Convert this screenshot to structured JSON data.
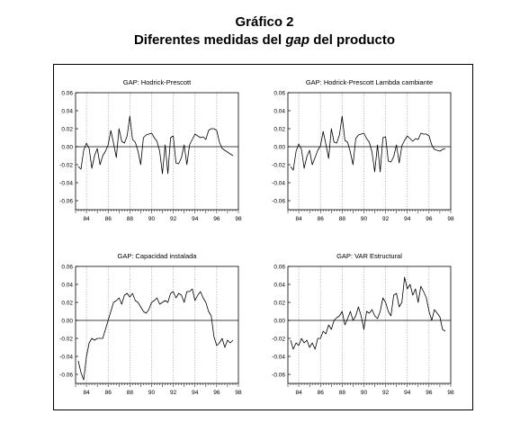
{
  "figure": {
    "title": "Gráfico 2",
    "subtitle_pre": "Diferentes medidas del ",
    "subtitle_em": "gap",
    "subtitle_post": " del producto"
  },
  "chart_data": [
    {
      "type": "line",
      "title": "GAP: Hodrick-Prescott",
      "ylim": [
        -0.07,
        0.06
      ],
      "yticks": [
        "0.06",
        "0.04",
        "0.02",
        "0.00",
        "-0.02",
        "-0.04",
        "-0.06"
      ],
      "xlim": [
        1983,
        1998
      ],
      "xticks": [
        "84",
        "86",
        "88",
        "90",
        "92",
        "94",
        "96",
        "98"
      ],
      "x_start": 1983.25,
      "x_step": 0.25,
      "values": [
        -0.022,
        -0.025,
        -0.004,
        0.004,
        -0.002,
        -0.024,
        -0.01,
        -0.002,
        -0.02,
        -0.01,
        -0.005,
        0.002,
        0.018,
        0.004,
        -0.012,
        0.02,
        0.006,
        0.004,
        0.012,
        0.034,
        0.008,
        0.005,
        -0.005,
        -0.02,
        0.01,
        0.013,
        0.014,
        0.015,
        0.01,
        0.006,
        -0.005,
        -0.03,
        0.002,
        -0.03,
        0.01,
        0.012,
        -0.018,
        -0.019,
        -0.012,
        0.002,
        -0.02,
        0.002,
        0.008,
        0.014,
        0.012,
        0.01,
        0.011,
        0.008,
        0.018,
        0.02,
        0.02,
        0.018,
        0.005,
        -0.002,
        -0.004,
        -0.006,
        -0.008,
        -0.01
      ],
      "grid": "vertical-dotted",
      "zero_line": true
    },
    {
      "type": "line",
      "title": "GAP: Hodrick-Prescott Lambda cambiante",
      "ylim": [
        -0.07,
        0.06
      ],
      "yticks": [
        "0.06",
        "0.04",
        "0.02",
        "0.00",
        "-0.02",
        "-0.04",
        "-0.06"
      ],
      "xlim": [
        1983,
        1998
      ],
      "xticks": [
        "84",
        "86",
        "88",
        "90",
        "92",
        "94",
        "96",
        "98"
      ],
      "x_start": 1983.25,
      "x_step": 0.25,
      "values": [
        -0.022,
        -0.026,
        -0.005,
        0.003,
        -0.003,
        -0.024,
        -0.011,
        -0.004,
        -0.02,
        -0.012,
        -0.004,
        0.001,
        0.017,
        0.003,
        -0.013,
        0.02,
        0.005,
        0.004,
        0.013,
        0.034,
        0.007,
        0.005,
        -0.006,
        -0.02,
        0.009,
        0.013,
        0.014,
        0.015,
        0.009,
        0.005,
        -0.006,
        -0.028,
        0.002,
        -0.028,
        0.01,
        0.011,
        -0.016,
        -0.017,
        -0.011,
        0.002,
        -0.018,
        0.001,
        0.007,
        0.012,
        0.009,
        0.006,
        0.009,
        0.008,
        0.015,
        0.014,
        0.014,
        0.012,
        0.002,
        -0.003,
        -0.004,
        -0.005,
        -0.003,
        -0.002
      ],
      "grid": "vertical-dotted",
      "zero_line": true
    },
    {
      "type": "line",
      "title": "GAP: Capacidad instalada",
      "ylim": [
        -0.07,
        0.06
      ],
      "yticks": [
        "0.06",
        "0.04",
        "0.02",
        "0.00",
        "-0.02",
        "-0.04",
        "-0.06"
      ],
      "xlim": [
        1983,
        1998
      ],
      "xticks": [
        "84",
        "86",
        "88",
        "90",
        "92",
        "94",
        "96",
        "98"
      ],
      "x_start": 1983.25,
      "x_step": 0.25,
      "values": [
        -0.045,
        -0.058,
        -0.066,
        -0.04,
        -0.025,
        -0.02,
        -0.022,
        -0.02,
        -0.02,
        -0.02,
        -0.01,
        0.0,
        0.01,
        0.02,
        0.022,
        0.025,
        0.018,
        0.028,
        0.03,
        0.026,
        0.03,
        0.022,
        0.02,
        0.015,
        0.01,
        0.008,
        0.012,
        0.02,
        0.022,
        0.025,
        0.018,
        0.02,
        0.022,
        0.02,
        0.03,
        0.032,
        0.025,
        0.03,
        0.028,
        0.02,
        0.032,
        0.032,
        0.035,
        0.022,
        0.028,
        0.032,
        0.025,
        0.02,
        0.01,
        0.005,
        -0.018,
        -0.028,
        -0.025,
        -0.02,
        -0.03,
        -0.022,
        -0.025,
        -0.022
      ],
      "grid": "vertical-dotted",
      "zero_line": true
    },
    {
      "type": "line",
      "title": "GAP: VAR Estructural",
      "ylim": [
        -0.07,
        0.06
      ],
      "yticks": [
        "0.06",
        "0.04",
        "0.02",
        "0.00",
        "-0.02",
        "-0.04",
        "-0.06"
      ],
      "xlim": [
        1983,
        1998
      ],
      "xticks": [
        "84",
        "86",
        "88",
        "90",
        "92",
        "94",
        "96",
        "98"
      ],
      "x_start": 1983.25,
      "x_step": 0.25,
      "values": [
        -0.022,
        -0.032,
        -0.025,
        -0.028,
        -0.02,
        -0.025,
        -0.022,
        -0.03,
        -0.025,
        -0.032,
        -0.02,
        -0.02,
        -0.012,
        -0.015,
        -0.005,
        -0.01,
        0.0,
        0.003,
        0.005,
        0.01,
        -0.005,
        0.002,
        0.01,
        0.0,
        0.005,
        0.015,
        0.005,
        -0.01,
        0.01,
        0.008,
        0.012,
        0.005,
        0.002,
        0.01,
        0.025,
        0.02,
        0.01,
        0.005,
        0.028,
        0.03,
        0.015,
        0.02,
        0.048,
        0.035,
        0.04,
        0.028,
        0.035,
        0.02,
        0.038,
        0.032,
        0.025,
        0.01,
        0.0,
        0.012,
        0.008,
        0.004,
        -0.01,
        -0.012
      ],
      "grid": "vertical-dotted",
      "zero_line": true
    }
  ]
}
